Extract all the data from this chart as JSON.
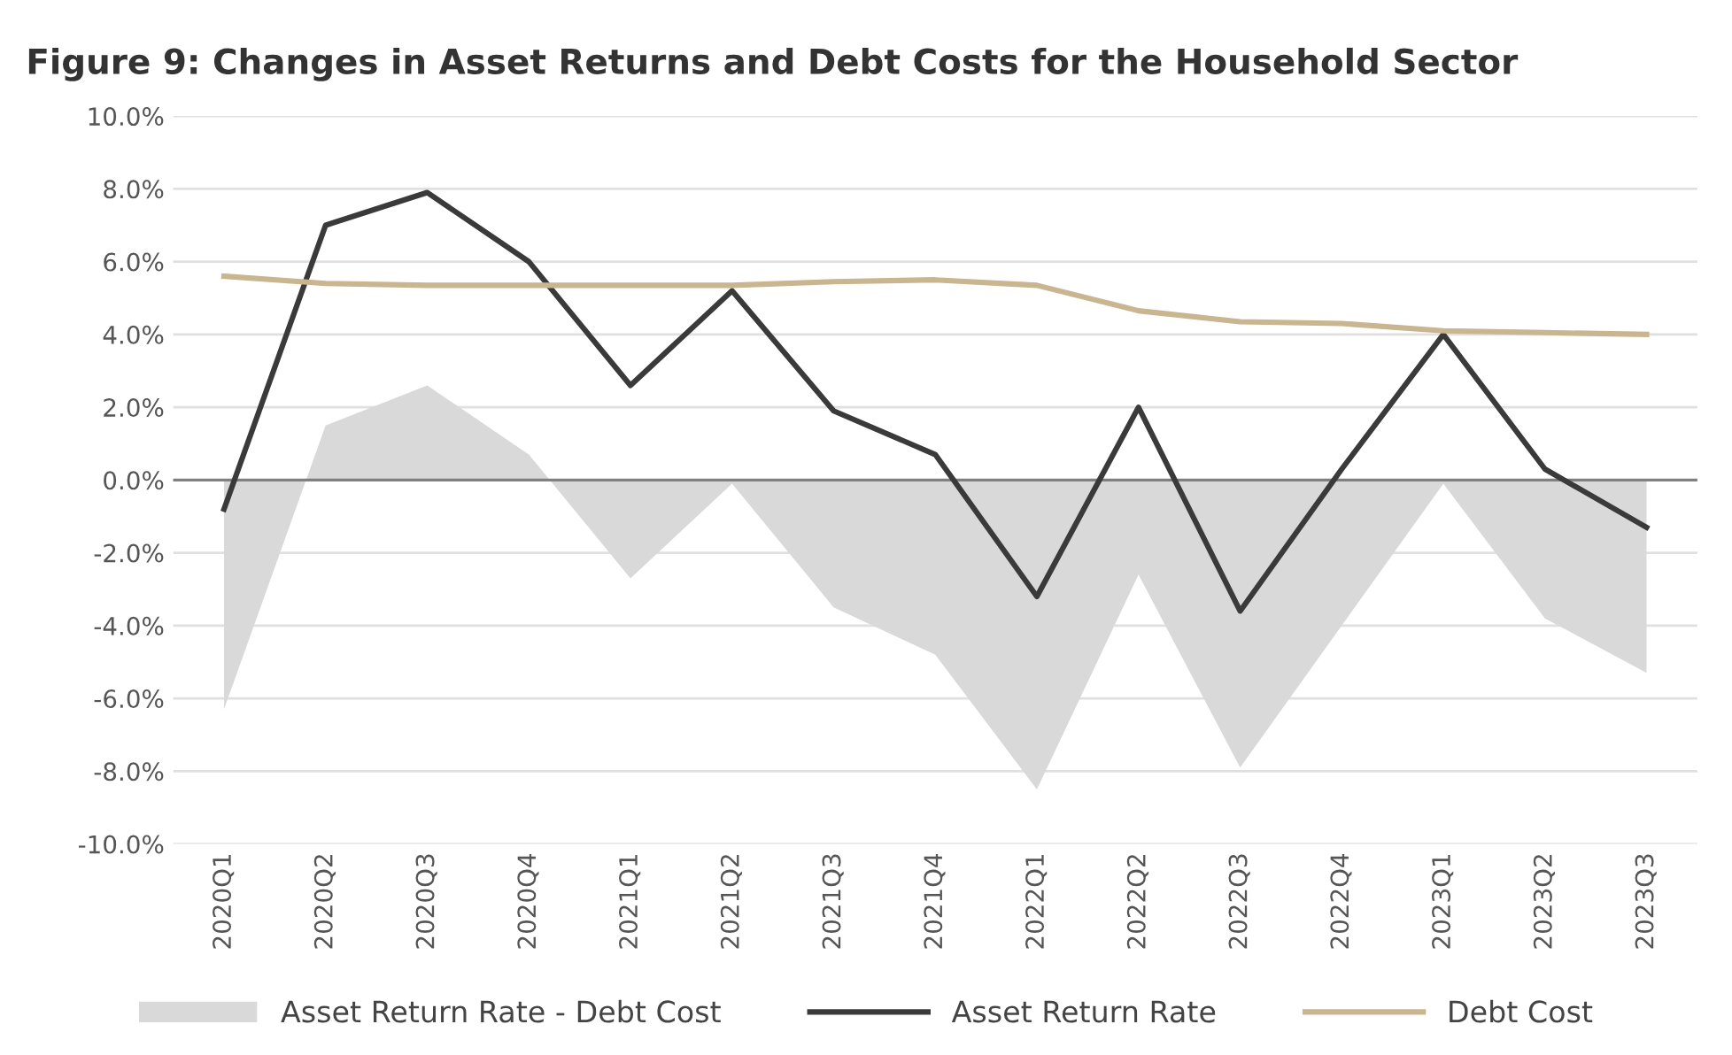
{
  "chart_data": {
    "type": "line",
    "title": "Figure 9: Changes in Asset Returns and Debt Costs for the Household Sector",
    "categories": [
      "2020Q1",
      "2020Q2",
      "2020Q3",
      "2020Q4",
      "2021Q1",
      "2021Q2",
      "2021Q3",
      "2021Q4",
      "2022Q1",
      "2022Q2",
      "2022Q3",
      "2022Q4",
      "2023Q1",
      "2023Q2",
      "2023Q3"
    ],
    "series": [
      {
        "name": "Asset Return Rate - Debt Cost",
        "type": "area",
        "color": "#d9d9d9",
        "values": [
          -6.3,
          1.5,
          2.6,
          0.7,
          -2.7,
          -0.1,
          -3.5,
          -4.8,
          -8.5,
          -2.6,
          -7.9,
          -4.0,
          -0.1,
          -3.8,
          -5.3
        ]
      },
      {
        "name": "Asset Return Rate",
        "color": "#3a3a3a",
        "values": [
          -0.8,
          7.0,
          7.9,
          6.0,
          2.6,
          5.2,
          1.9,
          0.7,
          -3.2,
          2.0,
          -3.6,
          0.3,
          4.0,
          0.3,
          -1.3
        ]
      },
      {
        "name": "Debt Cost",
        "color": "#c9b58f",
        "values": [
          5.6,
          5.4,
          5.35,
          5.35,
          5.35,
          5.35,
          5.45,
          5.5,
          5.35,
          4.65,
          4.35,
          4.3,
          4.1,
          4.05,
          4.0
        ]
      }
    ],
    "ylim": [
      -10,
      10
    ],
    "yticks": [
      {
        "value": -10,
        "label": "-10.0%"
      },
      {
        "value": -8,
        "label": "-8.0%"
      },
      {
        "value": -6,
        "label": "-6.0%"
      },
      {
        "value": -4,
        "label": "-4.0%"
      },
      {
        "value": -2,
        "label": "-2.0%"
      },
      {
        "value": 0,
        "label": "0.0%"
      },
      {
        "value": 2,
        "label": "2.0%"
      },
      {
        "value": 4,
        "label": "4.0%"
      },
      {
        "value": 6,
        "label": "6.0%"
      },
      {
        "value": 8,
        "label": "8.0%"
      },
      {
        "value": 10,
        "label": "10.0%"
      }
    ],
    "grid": "y",
    "legend": "bottom",
    "marker": "none",
    "line_style": "solid"
  }
}
